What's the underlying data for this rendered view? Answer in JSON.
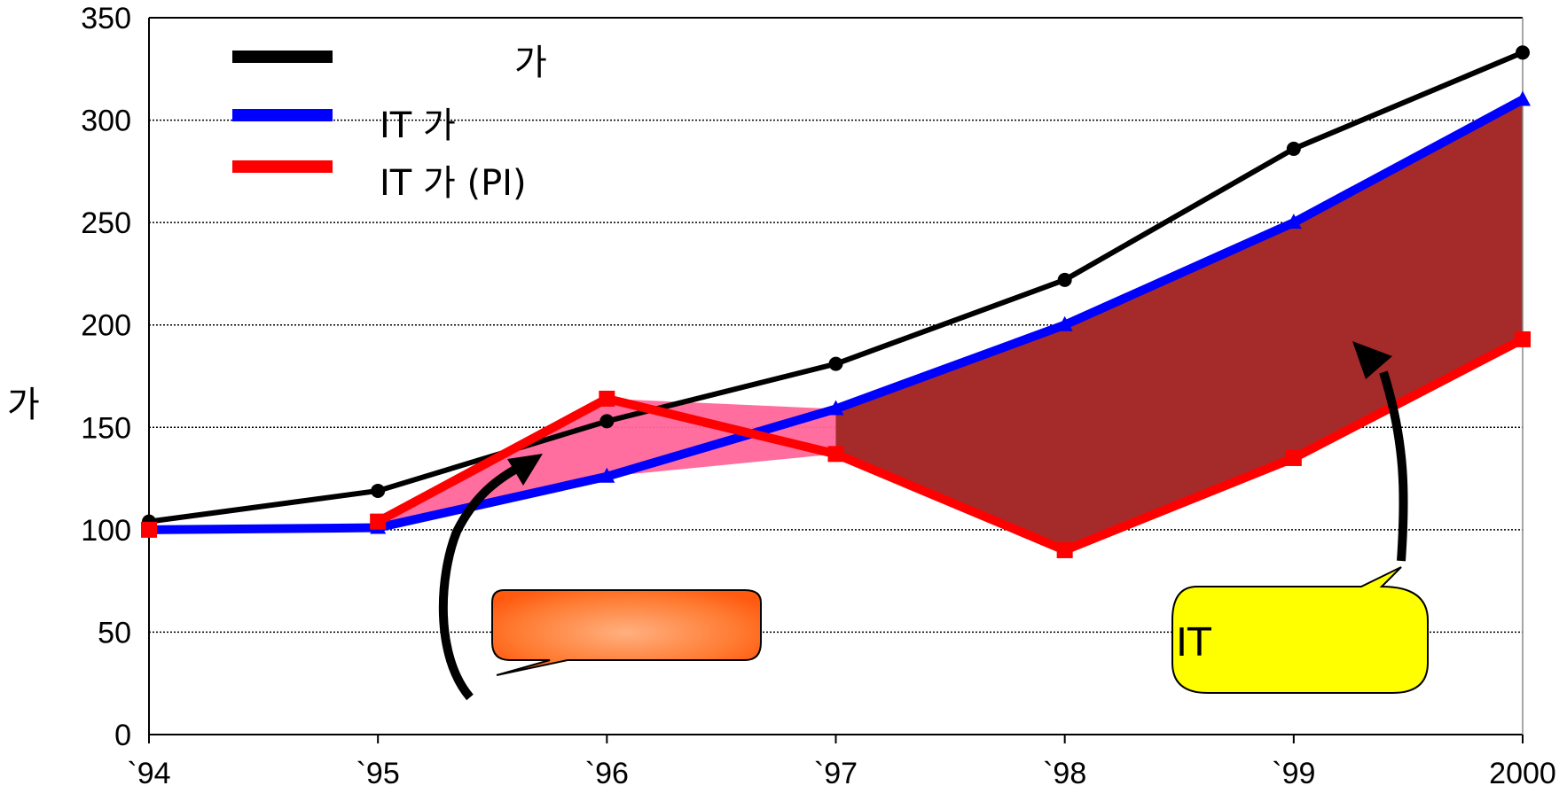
{
  "chart_data": {
    "type": "line",
    "title": "",
    "xlabel": "",
    "ylabel": "가",
    "categories": [
      "`94",
      "`95",
      "`96",
      "`97",
      "`98",
      "`99",
      "2000"
    ],
    "ylim": [
      0,
      350
    ],
    "yticks": [
      0,
      50,
      100,
      150,
      200,
      250,
      300,
      350
    ],
    "grid": "horizontal dotted",
    "legend_position": "top-left",
    "series": [
      {
        "name": "가",
        "color": "#000000",
        "marker": "circle",
        "values": [
          104,
          119,
          153,
          181,
          222,
          286,
          333
        ]
      },
      {
        "name": "IT 가",
        "color": "#0000ff",
        "marker": "triangle",
        "values": [
          100,
          101,
          126,
          159,
          200,
          250,
          310
        ]
      },
      {
        "name": "IT 가 (PI)",
        "color": "#ff0000",
        "marker": "square",
        "values": [
          100,
          104,
          164,
          137,
          90,
          135,
          193
        ]
      }
    ],
    "callouts": [
      {
        "text": "",
        "fill": "#ff8a3d",
        "style": "rounded-orange"
      },
      {
        "text": "IT",
        "fill": "#ffff00",
        "style": "rounded-yellow"
      }
    ],
    "shaded_regions": [
      {
        "between": [
          "IT 가 (PI)",
          "IT 가"
        ],
        "range": [
          "`95",
          "`97"
        ],
        "color": "#ff6699"
      },
      {
        "between": [
          "IT 가",
          "IT 가 (PI)"
        ],
        "range": [
          "`97",
          "2000"
        ],
        "color": "#a52a2a"
      }
    ]
  }
}
